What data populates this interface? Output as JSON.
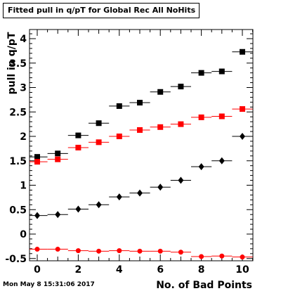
{
  "title": "Fitted pull in q/pT for Global Rec All NoHits",
  "footer": "Mon May  8 15:31:06 2017",
  "chart_data": {
    "type": "scatter",
    "title": "Fitted pull in q/pT for Global Rec All NoHits",
    "xlabel": "No. of Bad Points",
    "ylabel": "pull in q/pT",
    "xlim": [
      -0.5,
      10.5
    ],
    "ylim": [
      -0.55,
      4.25
    ],
    "x_ticks": [
      0,
      2,
      4,
      6,
      8,
      10
    ],
    "y_ticks": [
      -0.5,
      0,
      0.5,
      1,
      1.5,
      2,
      2.5,
      3,
      3.5,
      4
    ],
    "x_tick_labels": [
      "0",
      "2",
      "4",
      "6",
      "8",
      "10"
    ],
    "y_tick_labels": [
      "-0.5",
      "0",
      "0.5",
      "1",
      "1.5",
      "2",
      "2.5",
      "3",
      "3.5",
      "4"
    ],
    "grid": false,
    "series": [
      {
        "marker": "square",
        "color": "#000000",
        "x": [
          0,
          1,
          2,
          3,
          4,
          5,
          6,
          7,
          8,
          9,
          10
        ],
        "y": [
          1.58,
          1.65,
          2.02,
          2.27,
          2.62,
          2.69,
          2.91,
          3.02,
          3.3,
          3.33,
          3.73
        ]
      },
      {
        "marker": "square",
        "color": "#ff0000",
        "x": [
          0,
          1,
          2,
          3,
          4,
          5,
          6,
          7,
          8,
          9,
          10
        ],
        "y": [
          1.48,
          1.53,
          1.77,
          1.88,
          2.0,
          2.13,
          2.19,
          2.25,
          2.39,
          2.41,
          2.56
        ]
      },
      {
        "marker": "diamond",
        "color": "#000000",
        "x": [
          0,
          1,
          2,
          3,
          4,
          5,
          6,
          7,
          8,
          9,
          10
        ],
        "y": [
          0.38,
          0.4,
          0.51,
          0.6,
          0.76,
          0.84,
          0.96,
          1.1,
          1.38,
          1.5,
          2.0
        ]
      },
      {
        "marker": "circle",
        "color": "#ff0000",
        "x": [
          0,
          1,
          2,
          3,
          4,
          5,
          6,
          7,
          8,
          9,
          10
        ],
        "y": [
          -0.31,
          -0.31,
          -0.34,
          -0.35,
          -0.34,
          -0.35,
          -0.35,
          -0.37,
          -0.46,
          -0.45,
          -0.47
        ]
      }
    ]
  }
}
